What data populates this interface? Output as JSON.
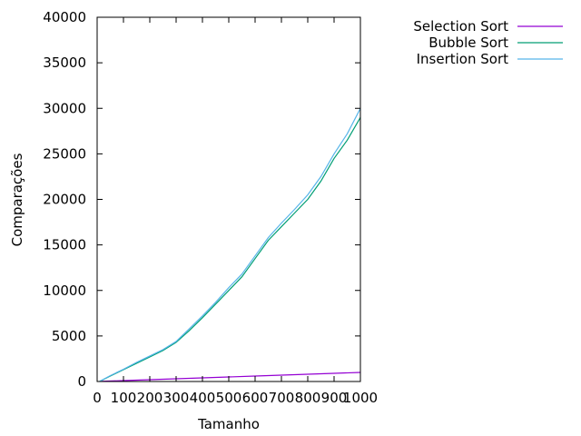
{
  "chart_data": {
    "type": "line",
    "xlabel": "Tamanho",
    "ylabel": "Comparações",
    "xlim": [
      0,
      1000
    ],
    "ylim": [
      0,
      40000
    ],
    "x_ticks": [
      0,
      100,
      200,
      300,
      400,
      500,
      600,
      700,
      800,
      900,
      1000
    ],
    "x_tick_labels": [
      "0",
      "100",
      "200",
      "300",
      "400",
      "500",
      "600",
      "700",
      "800",
      "900",
      "1000"
    ],
    "y_ticks": [
      0,
      5000,
      10000,
      15000,
      20000,
      25000,
      30000,
      35000,
      40000
    ],
    "y_tick_labels": [
      "0",
      "5000",
      "10000",
      "15000",
      "20000",
      "25000",
      "30000",
      "35000",
      "40000"
    ],
    "grid": false,
    "legend_position": "outside-top-right",
    "series": [
      {
        "name": "Selection Sort",
        "color": "#9400d3",
        "x": [
          10,
          100,
          200,
          300,
          400,
          500,
          600,
          700,
          800,
          900,
          1000
        ],
        "y": [
          10,
          100,
          200,
          300,
          400,
          500,
          600,
          700,
          800,
          900,
          1000
        ]
      },
      {
        "name": "Bubble Sort",
        "color": "#009e73",
        "x": [
          10,
          50,
          100,
          150,
          200,
          250,
          300,
          350,
          400,
          450,
          500,
          550,
          600,
          650,
          700,
          750,
          800,
          850,
          900,
          950,
          1000
        ],
        "y": [
          20,
          600,
          1300,
          2000,
          2700,
          3400,
          4300,
          5600,
          7000,
          8500,
          10000,
          11500,
          13500,
          15500,
          17000,
          18500,
          20000,
          22000,
          24500,
          26500,
          29000
        ]
      },
      {
        "name": "Insertion Sort",
        "color": "#56b4e9",
        "x": [
          10,
          50,
          100,
          150,
          200,
          250,
          300,
          350,
          400,
          450,
          500,
          550,
          600,
          650,
          700,
          750,
          800,
          850,
          900,
          950,
          1000
        ],
        "y": [
          20,
          650,
          1350,
          2100,
          2800,
          3500,
          4400,
          5800,
          7200,
          8700,
          10300,
          11800,
          13800,
          15800,
          17400,
          18900,
          20500,
          22500,
          25000,
          27200,
          30000
        ]
      }
    ]
  }
}
